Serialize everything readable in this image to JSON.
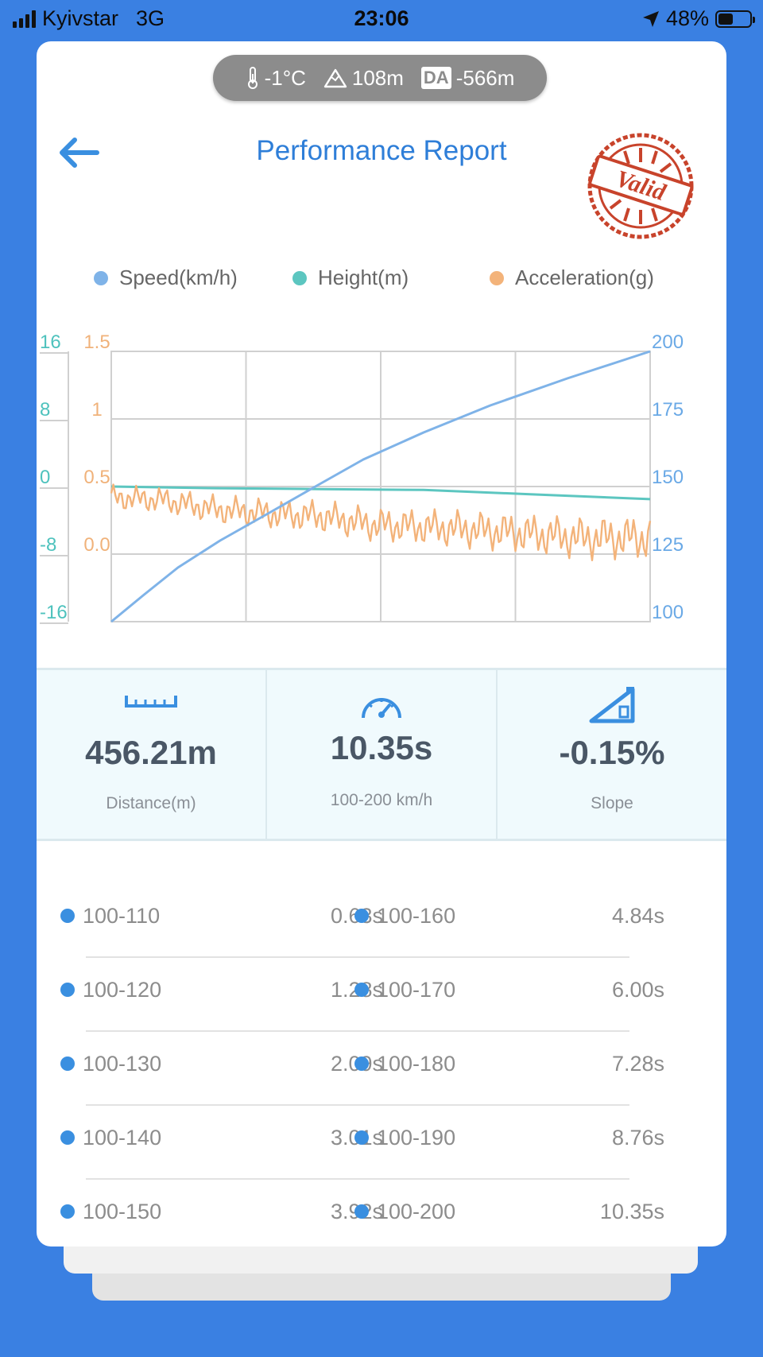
{
  "status_bar": {
    "carrier": "Kyivstar",
    "network": "3G",
    "time": "23:06",
    "battery": "48%",
    "battery_level": 0.48
  },
  "environment": {
    "temperature": "-1°C",
    "altitude": "108m",
    "da_label": "DA",
    "density_altitude": "-566m"
  },
  "header": {
    "title": "Performance Report",
    "stamp_text": "Valid"
  },
  "colors": {
    "accent": "#2e7ed8",
    "speed": "#7fb3e8",
    "height": "#5cc6c0",
    "acceleration": "#f3b37a",
    "stamp": "#c8432b",
    "background": "#3a80e2"
  },
  "chart_data": {
    "type": "line",
    "legend": [
      "Speed(km/h)",
      "Height(m)",
      "Acceleration(g)"
    ],
    "legend_position": "top",
    "grid": true,
    "axes": {
      "height_ticks": [
        "16",
        "8",
        "0",
        "-8",
        "-16"
      ],
      "acceleration_ticks": [
        "1.5",
        "1",
        "0.5",
        "0.0"
      ],
      "speed_ticks": [
        "200",
        "175",
        "150",
        "125",
        "100"
      ],
      "speed_range": [
        100,
        200
      ],
      "height_range": [
        -16,
        16
      ],
      "acceleration_range": [
        -0.5,
        1.5
      ]
    },
    "series": [
      {
        "name": "Speed(km/h)",
        "x": [
          0,
          0.63,
          1.28,
          2.09,
          3.01,
          3.92,
          4.84,
          6.0,
          7.28,
          8.76,
          10.35
        ],
        "values": [
          100,
          110,
          120,
          130,
          140,
          150,
          160,
          170,
          180,
          190,
          200
        ]
      },
      {
        "name": "Height(m)",
        "x": [
          0,
          2,
          4,
          6,
          8,
          10.35
        ],
        "values": [
          0,
          -0.2,
          -0.3,
          -0.4,
          -0.9,
          -1.5
        ]
      },
      {
        "name": "Acceleration(g)",
        "x": [
          0,
          1,
          2,
          3,
          4,
          5,
          6,
          7,
          8,
          9,
          10.35
        ],
        "values": [
          0.42,
          0.4,
          0.33,
          0.3,
          0.28,
          0.22,
          0.2,
          0.18,
          0.15,
          0.12,
          0.12
        ]
      }
    ]
  },
  "stats": [
    {
      "value": "456.21m",
      "label": "Distance(m)",
      "icon": "ruler-icon"
    },
    {
      "value": "10.35s",
      "label": "100-200 km/h",
      "icon": "speedometer-icon"
    },
    {
      "value": "-0.15%",
      "label": "Slope",
      "icon": "slope-icon"
    }
  ],
  "splits": [
    [
      {
        "range": "100-110",
        "time": "0.63s"
      },
      {
        "range": "100-160",
        "time": "4.84s"
      }
    ],
    [
      {
        "range": "100-120",
        "time": "1.28s"
      },
      {
        "range": "100-170",
        "time": "6.00s"
      }
    ],
    [
      {
        "range": "100-130",
        "time": "2.09s"
      },
      {
        "range": "100-180",
        "time": "7.28s"
      }
    ],
    [
      {
        "range": "100-140",
        "time": "3.01s"
      },
      {
        "range": "100-190",
        "time": "8.76s"
      }
    ],
    [
      {
        "range": "100-150",
        "time": "3.92s"
      },
      {
        "range": "100-200",
        "time": "10.35s"
      }
    ]
  ]
}
